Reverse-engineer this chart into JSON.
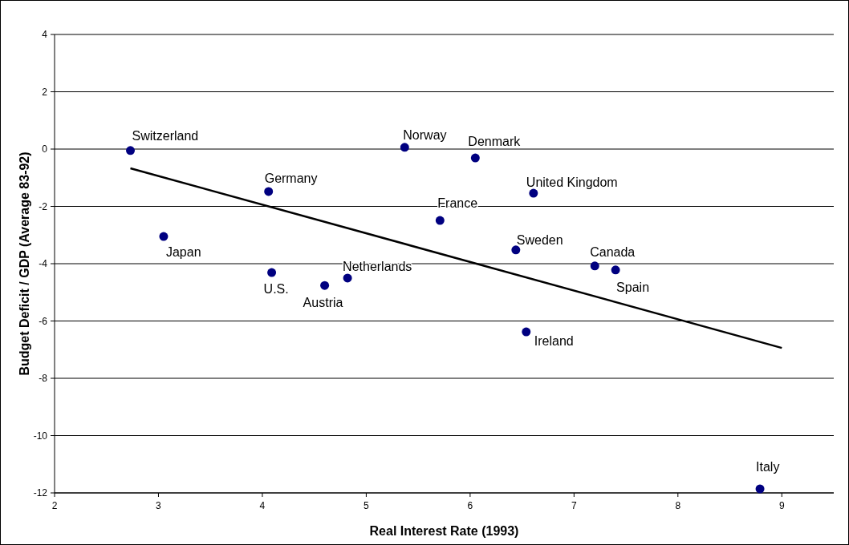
{
  "chart_data": {
    "type": "scatter",
    "xlabel": "Real Interest Rate (1993)",
    "ylabel": "Budget Deficit / GDP (Average 83-92)",
    "xlim": [
      2,
      9.5
    ],
    "xticks": [
      2,
      3,
      4,
      5,
      6,
      7,
      8,
      9
    ],
    "ylim": [
      -12,
      4
    ],
    "yticks": [
      -12,
      -10,
      -8,
      -6,
      -4,
      -2,
      0,
      2,
      4
    ],
    "grid": "y",
    "series": [
      {
        "color": "#000080",
        "marker": "circle",
        "x": [
          2.73,
          3.05,
          4.06,
          4.09,
          4.6,
          4.82,
          5.37,
          5.71,
          6.05,
          6.44,
          6.54,
          6.61,
          7.2,
          7.4,
          8.79
        ],
        "values": [
          -0.05,
          -3.05,
          -1.48,
          -4.31,
          -4.76,
          -4.5,
          0.06,
          -2.49,
          -0.31,
          -3.52,
          -6.38,
          -1.54,
          -4.08,
          -4.22,
          -11.86
        ]
      },
      {
        "type": "line",
        "color": "#000000",
        "x": [
          2.73,
          9
        ],
        "values": [
          -0.67,
          -6.94
        ]
      }
    ],
    "annotations": [
      {
        "text": "Switzerland",
        "x": 2.73,
        "y": -0.05
      },
      {
        "text": "Japan",
        "x": 3.05,
        "y": -3.05
      },
      {
        "text": "Germany",
        "x": 4.06,
        "y": -1.48
      },
      {
        "text": "U.S.",
        "x": 4.09,
        "y": -4.31
      },
      {
        "text": "Austria",
        "x": 4.6,
        "y": -4.76
      },
      {
        "text": "Netherlands",
        "x": 4.82,
        "y": -4.5
      },
      {
        "text": "Norway",
        "x": 5.37,
        "y": 0.06
      },
      {
        "text": "France",
        "x": 5.71,
        "y": -2.49
      },
      {
        "text": "Denmark",
        "x": 6.05,
        "y": -0.31
      },
      {
        "text": "Sweden",
        "x": 6.44,
        "y": -3.52
      },
      {
        "text": "Ireland",
        "x": 6.54,
        "y": -6.38
      },
      {
        "text": "United Kingdom",
        "x": 6.61,
        "y": -1.54
      },
      {
        "text": "Canada",
        "x": 7.2,
        "y": -4.08
      },
      {
        "text": "Spain",
        "x": 7.4,
        "y": -4.22
      },
      {
        "text": "Italy",
        "x": 8.79,
        "y": -11.86
      }
    ]
  }
}
